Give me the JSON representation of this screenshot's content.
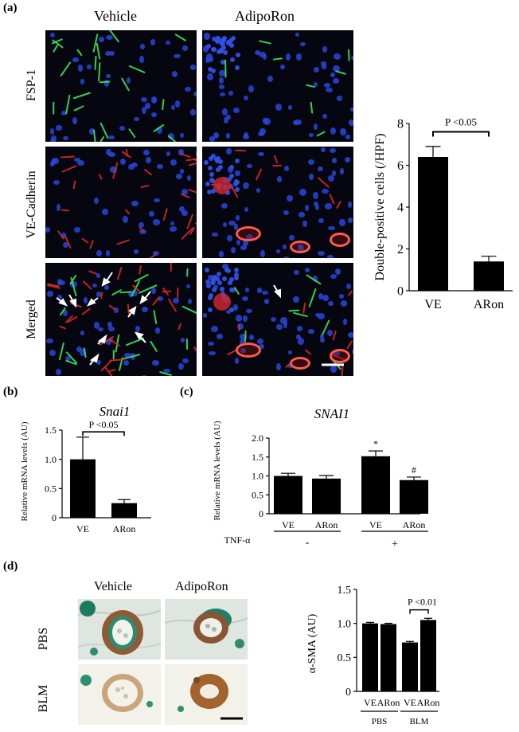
{
  "panels": {
    "a": {
      "label": "(a)",
      "columns": [
        "Vehicle",
        "AdipoRon"
      ],
      "rows": [
        "FSP-1",
        "VE-Cadherin",
        "Merged"
      ]
    },
    "b": {
      "label": "(b)"
    },
    "c": {
      "label": "(c)",
      "treatment_label": "TNF-α",
      "treatment_values": [
        "-",
        "+"
      ]
    },
    "d": {
      "label": "(d)",
      "columns": [
        "Vehicle",
        "AdipoRon"
      ],
      "rows": [
        "PBS",
        "BLM"
      ],
      "group_labels": [
        "PBS",
        "BLM"
      ]
    }
  },
  "chart_data": [
    {
      "id": "a",
      "type": "bar",
      "categories": [
        "VE",
        "ARon"
      ],
      "values": [
        6.4,
        1.4
      ],
      "errors": [
        0.5,
        0.25
      ],
      "ylabel": "Double-positive cells (/HPF)",
      "ylim": [
        0,
        8
      ],
      "yticks": [
        0,
        2,
        4,
        6,
        8
      ],
      "annotation": "P <0.05"
    },
    {
      "id": "b",
      "type": "bar",
      "title": "Snai1",
      "categories": [
        "VE",
        "ARon"
      ],
      "values": [
        1.0,
        0.25
      ],
      "errors": [
        0.38,
        0.06
      ],
      "ylabel": "Relative mRNA levels (AU)",
      "ylim": [
        0,
        1.5
      ],
      "yticks": [
        "0",
        "0.5",
        "1.0",
        "1.5"
      ],
      "annotation": "P <0.05"
    },
    {
      "id": "c",
      "type": "bar",
      "title": "SNAI1",
      "categories": [
        "VE",
        "ARon",
        "VE",
        "ARon"
      ],
      "values": [
        1.0,
        0.93,
        1.52,
        0.89
      ],
      "errors": [
        0.07,
        0.08,
        0.14,
        0.08
      ],
      "marks": [
        "",
        "",
        "*",
        "#"
      ],
      "ylabel": "Relative mRNA levels (AU)",
      "ylim": [
        0,
        2.0
      ],
      "yticks": [
        "0",
        "0.5",
        "1.0",
        "1.5",
        "2.0"
      ]
    },
    {
      "id": "d",
      "type": "bar",
      "categories": [
        "VE",
        "ARon",
        "VE",
        "ARon"
      ],
      "values": [
        1.0,
        0.99,
        0.72,
        1.05
      ],
      "errors": [
        0.015,
        0.012,
        0.015,
        0.025
      ],
      "ylabel": "α-SMA (AU)",
      "ylim": [
        0,
        1.5
      ],
      "yticks": [
        "0",
        "0.5",
        "1.0",
        "1.5"
      ],
      "annotation": "P <0.01"
    }
  ]
}
